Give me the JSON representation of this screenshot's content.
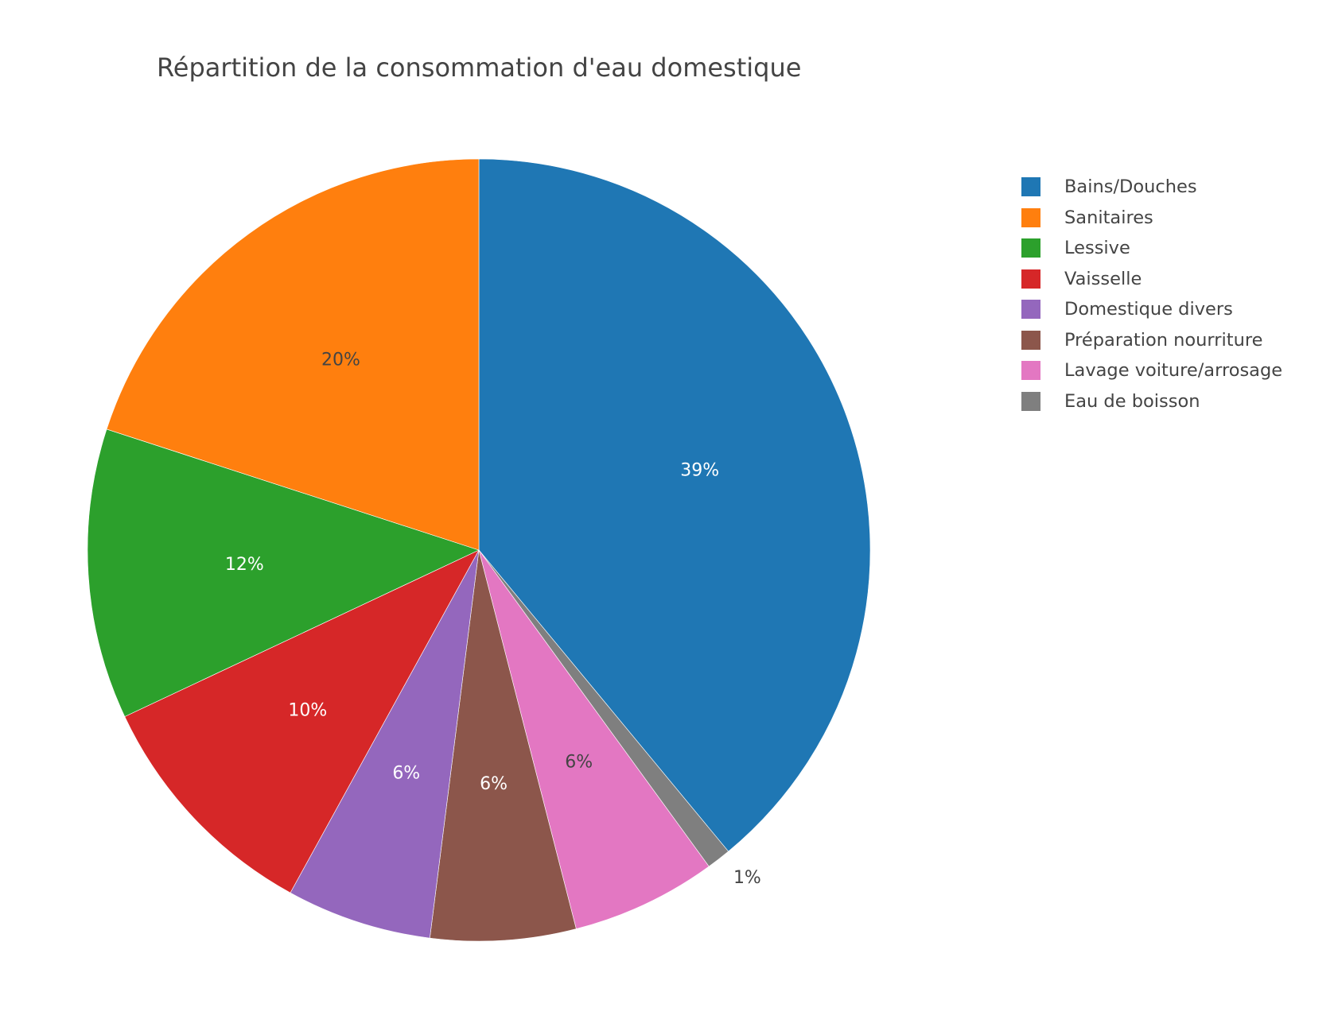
{
  "chart_data": {
    "type": "pie",
    "title": "Répartition de la consommation d'eau domestique",
    "legend_position": "top-right",
    "slices": [
      {
        "label": "Bains/Douches",
        "value": 39,
        "text": "39%",
        "color": "#1f77b4",
        "text_color": "#ffffff"
      },
      {
        "label": "Eau de boisson",
        "value": 1,
        "text": "1%",
        "color": "#7f7f7f",
        "text_color": "#444444"
      },
      {
        "label": "Lavage voiture/arrosage",
        "value": 6,
        "text": "6%",
        "color": "#e377c2",
        "text_color": "#444444"
      },
      {
        "label": "Préparation nourriture",
        "value": 6,
        "text": "6%",
        "color": "#8c564b",
        "text_color": "#ffffff"
      },
      {
        "label": "Domestique divers",
        "value": 6,
        "text": "6%",
        "color": "#9467bd",
        "text_color": "#ffffff"
      },
      {
        "label": "Vaisselle",
        "value": 10,
        "text": "10%",
        "color": "#d62728",
        "text_color": "#ffffff"
      },
      {
        "label": "Lessive",
        "value": 12,
        "text": "12%",
        "color": "#2ca02c",
        "text_color": "#ffffff"
      },
      {
        "label": "Sanitaires",
        "value": 20,
        "text": "20%",
        "color": "#ff7f0e",
        "text_color": "#444444"
      }
    ],
    "legend": [
      {
        "label": "Bains/Douches",
        "color": "#1f77b4"
      },
      {
        "label": "Sanitaires",
        "color": "#ff7f0e"
      },
      {
        "label": "Lessive",
        "color": "#2ca02c"
      },
      {
        "label": "Vaisselle",
        "color": "#d62728"
      },
      {
        "label": "Domestique divers",
        "color": "#9467bd"
      },
      {
        "label": "Préparation nourriture",
        "color": "#8c564b"
      },
      {
        "label": "Lavage voiture/arrosage",
        "color": "#e377c2"
      },
      {
        "label": "Eau de boisson",
        "color": "#7f7f7f"
      }
    ]
  }
}
